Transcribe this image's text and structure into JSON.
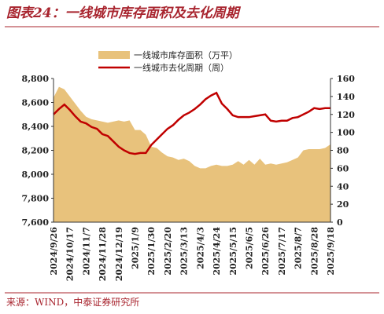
{
  "chart_data": {
    "type": "area_line",
    "title": "图表24：一线城市库存面积及去化周期",
    "source": "来源：WIND，中泰证券研究所",
    "categories": [
      "2024/9/26",
      null,
      null,
      "2024/10/17",
      null,
      null,
      "2024/11/7",
      null,
      null,
      "2024/11/28",
      null,
      null,
      "2024/12/19",
      null,
      null,
      "2025/1/9",
      null,
      null,
      "2025/1/30",
      null,
      null,
      "2025/2/20",
      null,
      null,
      "2025/3/13",
      null,
      null,
      "2025/4/3",
      null,
      null,
      "2025/4/24",
      null,
      null,
      "2025/5/15",
      null,
      null,
      "2025/6/5",
      null,
      null,
      "2025/6/26",
      null,
      null,
      "2025/7/17",
      null,
      null,
      "2025/8/7",
      null,
      null,
      "2025/8/28",
      null,
      null,
      "2025/9/18"
    ],
    "series": [
      {
        "name": "一线城市库存面积（万平）",
        "type": "area",
        "color": "#e8c27c",
        "values": [
          8640,
          8730,
          8710,
          8650,
          8590,
          8530,
          8480,
          8460,
          8450,
          8440,
          8430,
          8440,
          8450,
          8440,
          8450,
          8370,
          8370,
          8330,
          8230,
          8220,
          8180,
          8150,
          8140,
          8120,
          8130,
          8110,
          8070,
          8050,
          8050,
          8070,
          8080,
          8070,
          8070,
          8080,
          8110,
          8080,
          8120,
          8080,
          8130,
          8080,
          8090,
          8080,
          8090,
          8100,
          8120,
          8140,
          8200,
          8210,
          8210,
          8210,
          8220,
          8250
        ]
      },
      {
        "name": "一线城市去化周期（周）",
        "type": "line",
        "axis": "y2",
        "color": "#c00000",
        "values": [
          120,
          126,
          131,
          125,
          118,
          112,
          110,
          106,
          104,
          98,
          96,
          90,
          84,
          80,
          77,
          76,
          77,
          77,
          86,
          92,
          98,
          104,
          108,
          114,
          119,
          122,
          126,
          131,
          137,
          141,
          144,
          132,
          126,
          119,
          117,
          117,
          117,
          118,
          119,
          120,
          113,
          112,
          113,
          113,
          116,
          117,
          120,
          123,
          127,
          126,
          127,
          127
        ]
      }
    ],
    "ylim": [
      7600,
      8800
    ],
    "yticks": [
      {
        "value": 7600,
        "label": "7,600"
      },
      {
        "value": 7800,
        "label": "7,800"
      },
      {
        "value": 8000,
        "label": "8,000"
      },
      {
        "value": 8200,
        "label": "8,200"
      },
      {
        "value": 8400,
        "label": "8,400"
      },
      {
        "value": 8600,
        "label": "8,600"
      },
      {
        "value": 8800,
        "label": "8,800"
      }
    ],
    "y2lim": [
      0,
      160
    ],
    "y2ticks": [
      0,
      20,
      40,
      60,
      80,
      100,
      120,
      140,
      160
    ]
  }
}
